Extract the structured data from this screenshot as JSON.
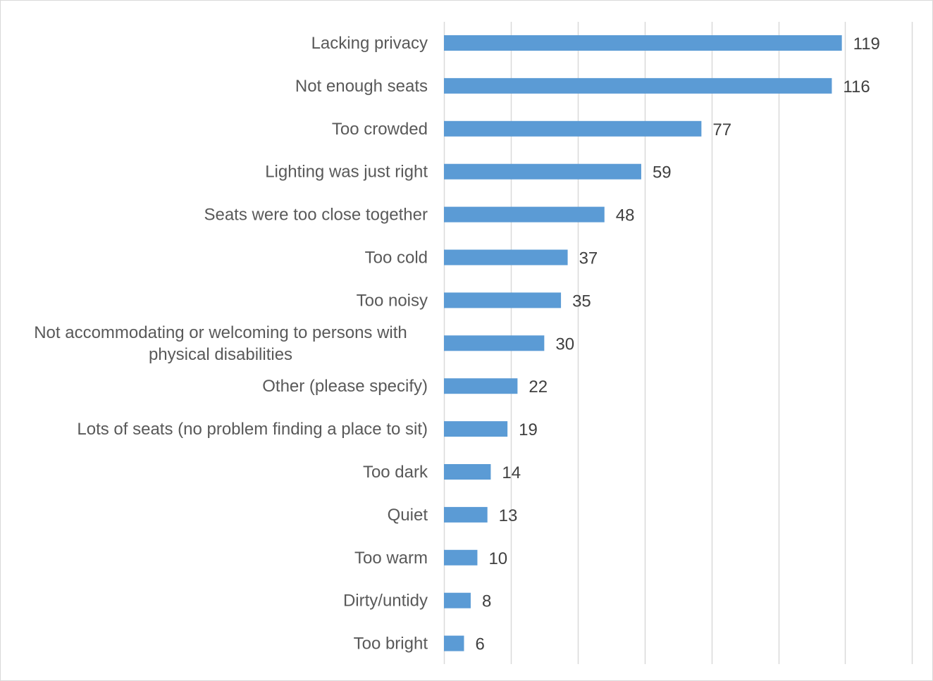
{
  "chart_data": {
    "type": "bar",
    "orientation": "horizontal",
    "categories": [
      "Lacking privacy",
      "Not enough seats",
      "Too crowded",
      "Lighting was just right",
      "Seats were too close together",
      "Too cold",
      "Too noisy",
      "Not accommodating or welcoming to persons with physical disabilities",
      "Other (please specify)",
      "Lots of seats (no problem finding a place to sit)",
      "Too dark",
      "Quiet",
      "Too warm",
      "Dirty/untidy",
      "Too bright"
    ],
    "values": [
      119,
      116,
      77,
      59,
      48,
      37,
      35,
      30,
      22,
      19,
      14,
      13,
      10,
      8,
      6
    ],
    "title": "",
    "xlabel": "",
    "ylabel": "",
    "xlim": [
      0,
      140
    ],
    "xtick_step": 20,
    "grid": "vertical",
    "legend": "none",
    "data_labels": true,
    "bar_color": "#5b9bd5",
    "grid_color": "#d9d9d9"
  }
}
